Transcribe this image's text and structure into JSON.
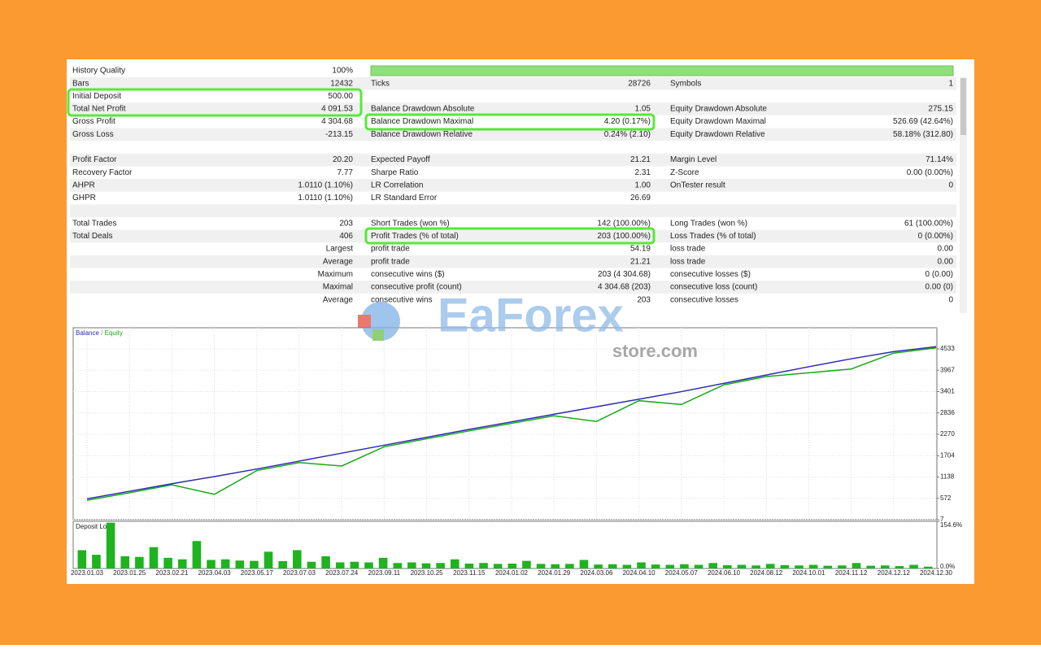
{
  "report": {
    "rows": [
      [
        "History Quality",
        "100%",
        null,
        null,
        null,
        null
      ],
      [
        "Bars",
        "12432",
        "Ticks",
        "28726",
        "Symbols",
        "1"
      ],
      [
        "Initial Deposit",
        "500.00",
        null,
        null,
        null,
        null
      ],
      [
        "Total Net Profit",
        "4 091.53",
        "Balance Drawdown Absolute",
        "1.05",
        "Equity Drawdown Absolute",
        "275.15"
      ],
      [
        "Gross Profit",
        "4 304.68",
        "Balance Drawdown Maximal",
        "4.20 (0.17%)",
        "Equity Drawdown Maximal",
        "526.69 (42.64%)"
      ],
      [
        "Gross Loss",
        "-213.15",
        "Balance Drawdown Relative",
        "0.24% (2.10)",
        "Equity Drawdown Relative",
        "58.18% (312.80)"
      ],
      null,
      [
        "Profit Factor",
        "20.20",
        "Expected Payoff",
        "21.21",
        "Margin Level",
        "71.14%"
      ],
      [
        "Recovery Factor",
        "7.77",
        "Sharpe Ratio",
        "2.31",
        "Z-Score",
        "0.00 (0.00%)"
      ],
      [
        "AHPR",
        "1.0110 (1.10%)",
        "LR Correlation",
        "1.00",
        "OnTester result",
        "0"
      ],
      [
        "GHPR",
        "1.0110 (1.10%)",
        "LR Standard Error",
        "26.69",
        null,
        null
      ],
      null,
      [
        "Total Trades",
        "203",
        "Short Trades (won %)",
        "142 (100.00%)",
        "Long Trades (won %)",
        "61 (100.00%)"
      ],
      [
        "Total Deals",
        "406",
        "Profit Trades (% of total)",
        "203 (100.00%)",
        "Loss Trades (% of total)",
        "0 (0.00%)"
      ],
      [
        null,
        "Largest",
        "profit trade",
        "54.19",
        "loss trade",
        "0.00"
      ],
      [
        null,
        "Average",
        "profit trade",
        "21.21",
        "loss trade",
        "0.00"
      ],
      [
        null,
        "Maximum",
        "consecutive wins ($)",
        "203 (4 304.68)",
        "consecutive losses ($)",
        "0 (0.00)"
      ],
      [
        null,
        "Maximal",
        "consecutive profit (count)",
        "4 304.68 (203)",
        "consecutive loss (count)",
        "0.00 (0)"
      ],
      [
        null,
        "Average",
        "consecutive wins",
        "203",
        "consecutive losses",
        "0"
      ]
    ]
  },
  "watermark": {
    "brand": "EaForex",
    "site": "store.com"
  },
  "chart_data": [
    {
      "type": "line",
      "legend_separator": "/",
      "grid": true,
      "categories": [
        "2023.01.03",
        "2023.01.25",
        "2023.02.21",
        "2023.04.03",
        "2023.05.17",
        "2023.07.03",
        "2023.07.24",
        "2023.09.11",
        "2023.10.25",
        "2023.11.15",
        "2024.01.02",
        "2024.01.29",
        "2024.03.06",
        "2024.04.10",
        "2024.05.07",
        "2024.06.10",
        "2024.08.12",
        "2024.10.01",
        "2024.11.12",
        "2024.12.12",
        "2024.12.30"
      ],
      "series": [
        {
          "name": "Balance",
          "color": "#2b2bb0",
          "values": [
            560,
            760,
            960,
            1150,
            1350,
            1560,
            1770,
            1980,
            2190,
            2400,
            2600,
            2800,
            3000,
            3200,
            3400,
            3620,
            3840,
            4060,
            4270,
            4460,
            4591
          ]
        },
        {
          "name": "Equity",
          "color": "#1aa81a",
          "values": [
            520,
            720,
            930,
            680,
            1310,
            1520,
            1430,
            1940,
            2150,
            2360,
            2560,
            2760,
            2610,
            3160,
            3060,
            3580,
            3800,
            3900,
            4000,
            4420,
            4560
          ]
        }
      ],
      "ylim": [
        7,
        5093
      ],
      "yticks": [
        7,
        572,
        1138,
        1704,
        2270,
        2836,
        3401,
        3967,
        4533
      ]
    },
    {
      "type": "bar",
      "title": "Deposit Load",
      "color": "#1fb31f",
      "values": [
        60,
        45,
        150,
        40,
        38,
        70,
        35,
        30,
        90,
        28,
        30,
        26,
        25,
        55,
        24,
        60,
        22,
        40,
        20,
        22,
        20,
        35,
        18,
        20,
        17,
        18,
        30,
        16,
        18,
        15,
        16,
        25,
        15,
        14,
        15,
        28,
        13,
        14,
        12,
        20,
        13,
        12,
        14,
        12,
        18,
        11,
        12,
        10,
        15,
        11,
        10,
        12,
        9,
        10,
        18,
        9,
        10,
        8,
        12,
        6
      ],
      "ylim": [
        0,
        154.6
      ],
      "yticks": [
        {
          "value": 0,
          "label": "0.0%"
        },
        {
          "value": 154.6,
          "label": "154.6%"
        }
      ]
    }
  ]
}
